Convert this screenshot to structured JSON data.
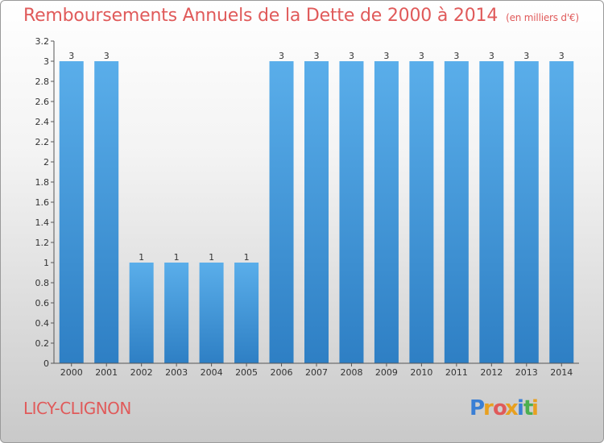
{
  "chart_data": {
    "type": "bar",
    "title": "Remboursements Annuels de la Dette de 2000 à 2014",
    "unit": "(en milliers d'€)",
    "categories": [
      "2000",
      "2001",
      "2002",
      "2003",
      "2004",
      "2005",
      "2006",
      "2007",
      "2008",
      "2009",
      "2010",
      "2011",
      "2012",
      "2013",
      "2014"
    ],
    "values": [
      3,
      3,
      1,
      1,
      1,
      1,
      3,
      3,
      3,
      3,
      3,
      3,
      3,
      3,
      3
    ],
    "data_labels": [
      "3",
      "3",
      "1",
      "1",
      "1",
      "1",
      "3",
      "3",
      "3",
      "3",
      "3",
      "3",
      "3",
      "3",
      "3"
    ],
    "ylim": [
      0,
      3.2
    ],
    "yticks": [
      0,
      0.2,
      0.4,
      0.6,
      0.8,
      1,
      1.2,
      1.4,
      1.6,
      1.8,
      2,
      2.2,
      2.4,
      2.6,
      2.8,
      3,
      3.2
    ],
    "ytick_labels": [
      "0",
      "0.2",
      "0.4",
      "0.6",
      "0.8",
      "1",
      "1.2",
      "1.4",
      "1.6",
      "1.8",
      "2",
      "2.2",
      "2.4",
      "2.6",
      "2.8",
      "3",
      "3.2"
    ],
    "grid": false,
    "bar_color": "#4a9ede"
  },
  "footer": {
    "commune": "LICY-CLIGNON",
    "logo_text": "Proxiti",
    "logo_colors": [
      "#3a7fd5",
      "#e8a020",
      "#e05a5a",
      "#4caf50"
    ]
  }
}
